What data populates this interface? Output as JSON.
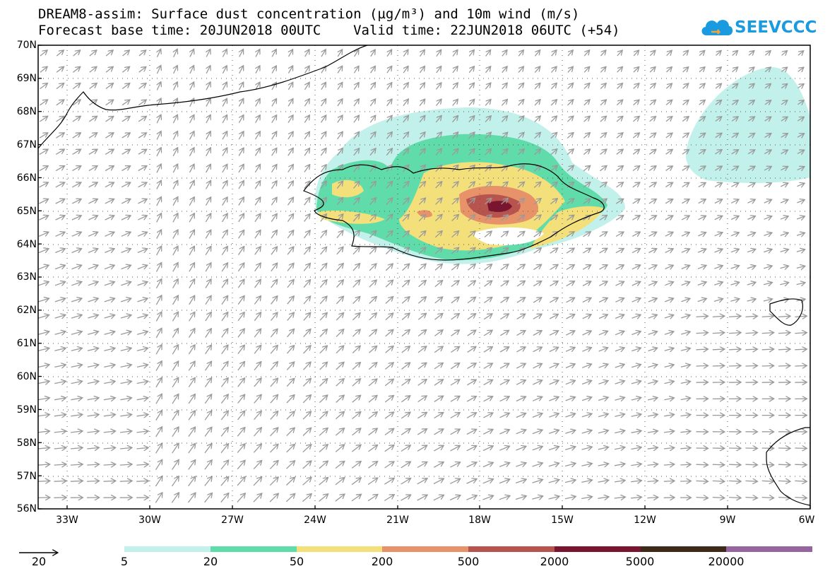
{
  "title_line1": "DREAM8-assim: Surface dust concentration (µg/m³) and 10m wind (m/s)",
  "title_line2": "Forecast base time: 20JUN2018 00UTC    Valid time: 22JUN2018 06UTC (+54)",
  "logo_text": "SEEVCCC",
  "logo_icon": "cloud-icon",
  "lat_labels": [
    "70N",
    "69N",
    "68N",
    "67N",
    "66N",
    "65N",
    "64N",
    "63N",
    "62N",
    "61N",
    "60N",
    "59N",
    "58N",
    "57N",
    "56N"
  ],
  "lon_labels": [
    "33W",
    "30W",
    "27W",
    "24W",
    "21W",
    "18W",
    "15W",
    "12W",
    "9W",
    "6W"
  ],
  "wind_reference_label": "20",
  "colorbar": {
    "colors": [
      "#c2f0ea",
      "#5fdcaa",
      "#f4e07a",
      "#e8926a",
      "#b8544e",
      "#7a1530",
      "#3e2a18",
      "#96649e"
    ],
    "labels": [
      "5",
      "20",
      "50",
      "200",
      "500",
      "2000",
      "5000",
      "20000"
    ]
  },
  "map_colors": {
    "land_line": "#000000",
    "arrow": "#9a9a9a",
    "grid": "#555555"
  }
}
